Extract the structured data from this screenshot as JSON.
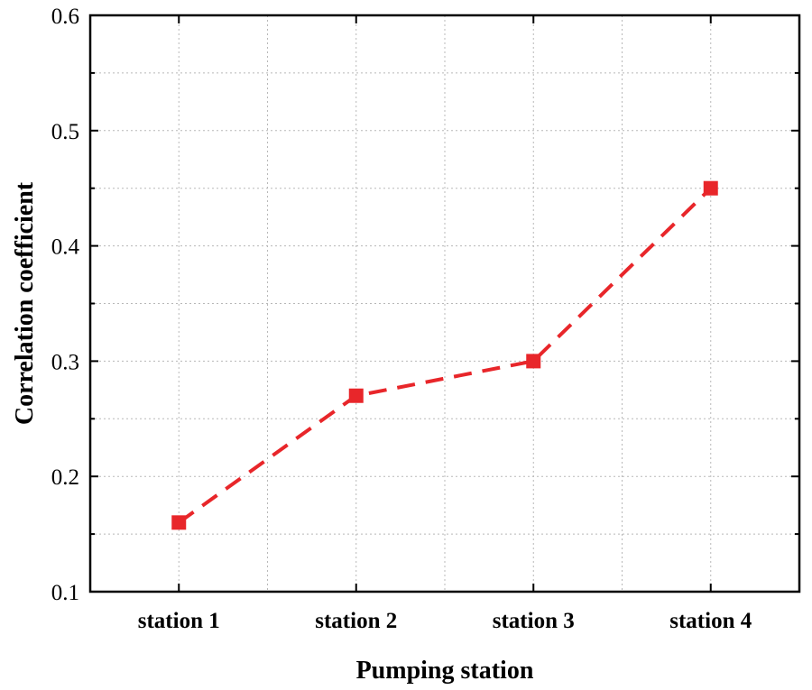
{
  "chart_data": {
    "type": "line",
    "title": "",
    "xlabel": "Pumping station",
    "ylabel": "Correlation coefficient",
    "categories": [
      "station 1",
      "station 2",
      "station 3",
      "station 4"
    ],
    "series": [
      {
        "values": [
          0.16,
          0.27,
          0.3,
          0.45
        ]
      }
    ],
    "ylim": [
      0.1,
      0.6
    ],
    "yticks": [
      "0.1",
      "0.2",
      "0.3",
      "0.4",
      "0.5",
      "0.6"
    ],
    "grid": true,
    "line_style": "dashed",
    "marker": "square",
    "colors": {
      "series": "#e8262a",
      "axis": "#000000",
      "grid": "#b8b8b8"
    }
  }
}
